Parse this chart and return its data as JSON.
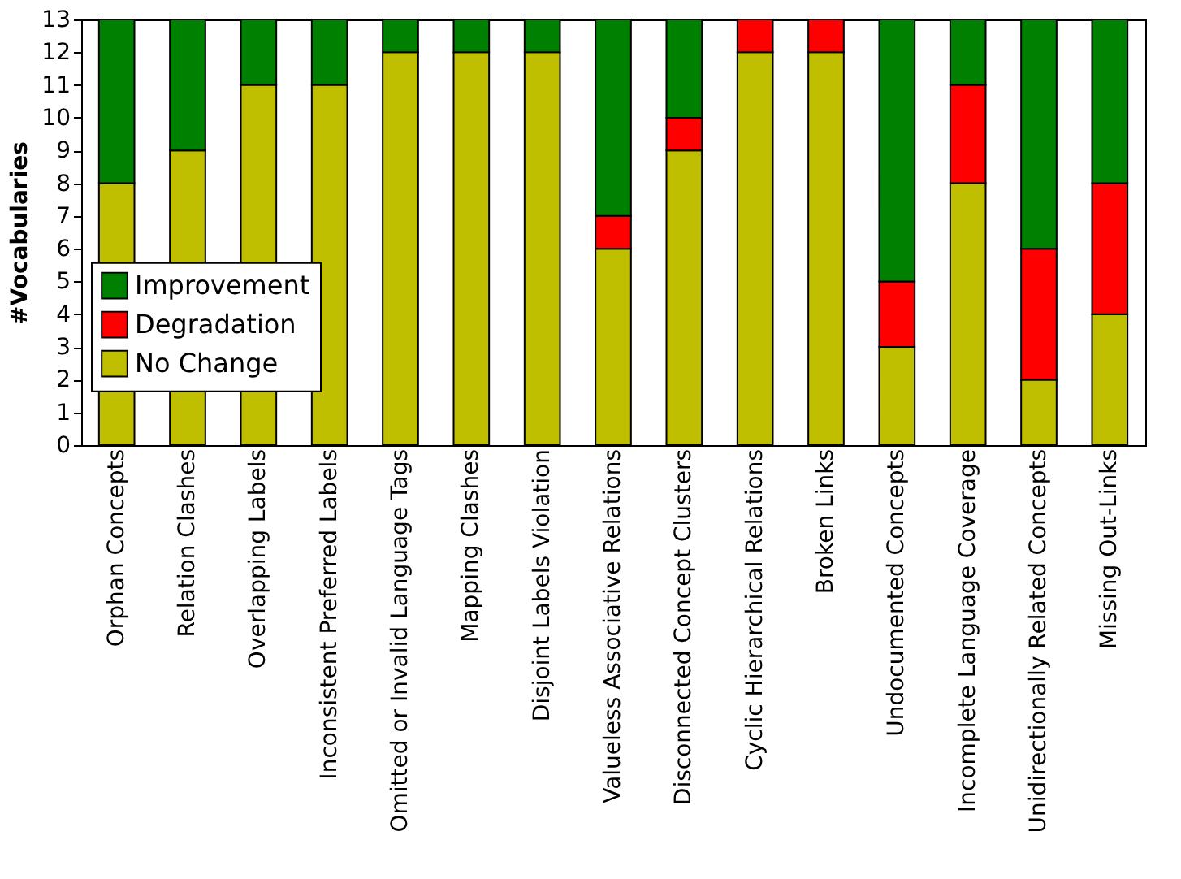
{
  "chart_data": {
    "type": "bar",
    "stacked": true,
    "ylabel": "#Vocabularies",
    "categories": [
      "Orphan Concepts",
      "Relation Clashes",
      "Overlapping Labels",
      "Inconsistent Preferred Labels",
      "Omitted or Invalid Language Tags",
      "Mapping Clashes",
      "Disjoint Labels Violation",
      "Valueless Associative Relations",
      "Disconnected Concept Clusters",
      "Cyclic Hierarchical Relations",
      "Broken Links",
      "Undocumented Concepts",
      "Incomplete Language Coverage",
      "Unidirectionally Related Concepts",
      "Missing Out-Links"
    ],
    "series": [
      {
        "name": "No Change",
        "color": "#bfbf00",
        "values": [
          8,
          9,
          11,
          11,
          12,
          12,
          12,
          6,
          9,
          12,
          12,
          3,
          8,
          2,
          4
        ]
      },
      {
        "name": "Degradation",
        "color": "#ff0000",
        "values": [
          0,
          0,
          0,
          0,
          0,
          0,
          0,
          1,
          1,
          1,
          1,
          2,
          3,
          4,
          4
        ]
      },
      {
        "name": "Improvement",
        "color": "#008000",
        "values": [
          5,
          4,
          2,
          2,
          1,
          1,
          1,
          6,
          3,
          0,
          0,
          8,
          2,
          7,
          5
        ]
      }
    ],
    "ylim": [
      0,
      13
    ],
    "yticks": [
      0,
      1,
      2,
      3,
      4,
      5,
      6,
      7,
      8,
      9,
      10,
      11,
      12,
      13
    ],
    "grid": false,
    "legend": "left"
  }
}
